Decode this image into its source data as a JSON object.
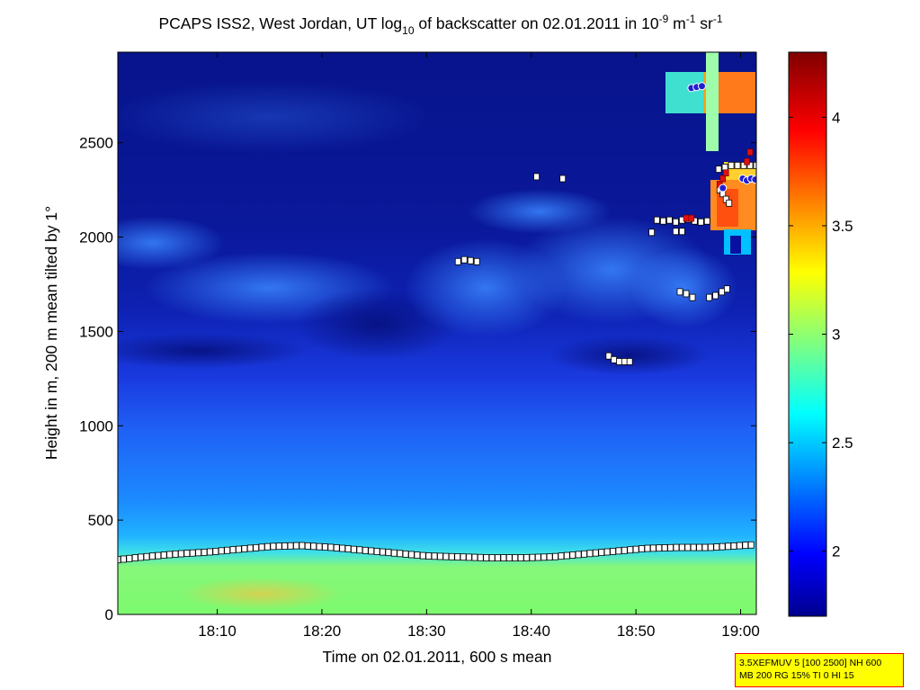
{
  "chart_data": {
    "type": "heatmap",
    "title": {
      "prefix": "PCAPS ISS2, West Jordan, UT log",
      "prefix_sub": "10",
      "mid": " of backscatter on 02.01.2011 in 10",
      "exp1": "-9",
      "mid2": " m",
      "exp2": "-1",
      "mid3": " sr",
      "exp3": "-1"
    },
    "xlabel": "Time on 02.01.2011, 600 s mean",
    "ylabel": "Height in m, 200 m mean tilted by 1°",
    "x_ticks": [
      {
        "label": "18:10",
        "minutes": 10
      },
      {
        "label": "18:20",
        "minutes": 20
      },
      {
        "label": "18:30",
        "minutes": 30
      },
      {
        "label": "18:40",
        "minutes": 40
      },
      {
        "label": "18:50",
        "minutes": 50
      },
      {
        "label": "19:00",
        "minutes": 60
      }
    ],
    "xlim_minutes": [
      0.5,
      61.5
    ],
    "y_ticks": [
      0,
      500,
      1000,
      1500,
      2000,
      2500
    ],
    "ylim": [
      0,
      2980
    ],
    "colorbar": {
      "ticks": [
        2,
        2.5,
        3,
        3.5,
        4
      ],
      "labels": [
        "2",
        "2.5",
        "3",
        "3.5",
        "4"
      ],
      "range": [
        1.7,
        4.3
      ],
      "colormap": "jet"
    },
    "mixing_layer_height": {
      "marker": "white square",
      "minutes": [
        0.5,
        3,
        6,
        9,
        12,
        15,
        18,
        21,
        24,
        27,
        30,
        33,
        36,
        39,
        42,
        45,
        48,
        51,
        54,
        57,
        60,
        61.5
      ],
      "height": [
        290,
        305,
        320,
        330,
        345,
        360,
        365,
        355,
        340,
        325,
        310,
        305,
        300,
        300,
        305,
        320,
        335,
        350,
        355,
        355,
        365,
        370
      ]
    },
    "elevated_layers": [
      {
        "minutes": [
          33,
          33.6,
          34.2,
          34.8
        ],
        "height": [
          1870,
          1880,
          1875,
          1870
        ]
      },
      {
        "minutes": [
          40.5
        ],
        "height": [
          2320
        ]
      },
      {
        "minutes": [
          43
        ],
        "height": [
          2310
        ]
      },
      {
        "minutes": [
          47.4,
          47.9,
          48.4,
          48.9,
          49.4
        ],
        "height": [
          1370,
          1350,
          1340,
          1340,
          1340
        ]
      },
      {
        "minutes": [
          51.5
        ],
        "height": [
          2025
        ]
      },
      {
        "minutes": [
          52,
          52.6,
          53.2,
          53.8,
          54.4,
          55,
          55.6,
          56.2,
          56.8
        ],
        "height": [
          2090,
          2085,
          2090,
          2080,
          2090,
          2095,
          2085,
          2080,
          2085
        ]
      },
      {
        "minutes": [
          53.8,
          54.4
        ],
        "height": [
          2030,
          2030
        ]
      },
      {
        "minutes": [
          54.2,
          54.8,
          55.4
        ],
        "height": [
          1710,
          1700,
          1680
        ]
      },
      {
        "minutes": [
          57,
          57.6,
          58.2,
          58.7
        ],
        "height": [
          1680,
          1690,
          1710,
          1725
        ]
      },
      {
        "minutes": [
          57.9,
          58.5,
          59.1,
          59.7,
          60.3,
          60.9,
          61.5
        ],
        "height": [
          2360,
          2370,
          2380,
          2380,
          2380,
          2380,
          2380
        ]
      },
      {
        "minutes": [
          58,
          58.3,
          58.6,
          58.9
        ],
        "height": [
          2250,
          2230,
          2200,
          2180
        ]
      }
    ],
    "red_markers": [
      {
        "minutes": [
          54.8,
          55.3
        ],
        "height": [
          2100,
          2100
        ]
      },
      {
        "minutes": [
          58.0,
          58.3,
          58.6
        ],
        "height": [
          2280,
          2310,
          2340
        ]
      },
      {
        "minutes": [
          60.6,
          60.9
        ],
        "height": [
          2400,
          2450
        ]
      }
    ],
    "blue_markers": [
      {
        "minutes": [
          55.3,
          55.8,
          56.3
        ],
        "height": [
          2790,
          2795,
          2800
        ]
      },
      {
        "minutes": [
          58.3
        ],
        "height": [
          2260
        ]
      },
      {
        "minutes": [
          60.2,
          60.6,
          61.0,
          61.4
        ],
        "height": [
          2310,
          2300,
          2310,
          2305
        ]
      }
    ]
  },
  "info_box": {
    "line1": "3.5XEFMUV 5 [100 2500] NH 600",
    "line2": "MB 200 RG 15% TI 0 HI 15"
  }
}
